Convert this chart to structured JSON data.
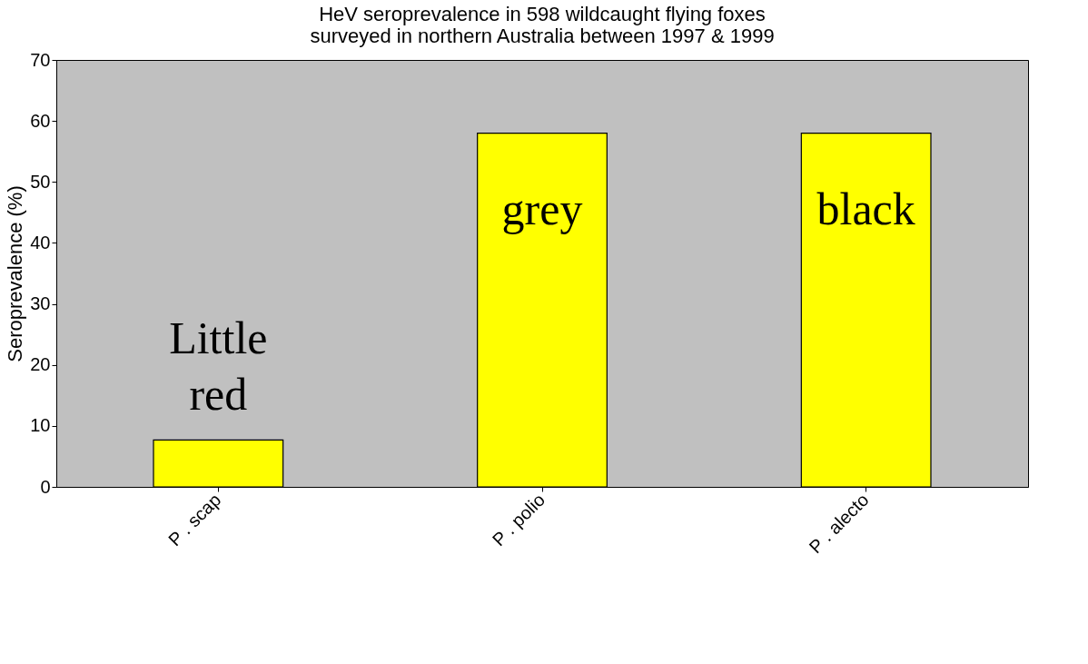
{
  "chart_data": {
    "type": "bar",
    "title": "HeV seroprevalence in 598 wildcaught flying foxes\nsurveyed in northern Australia between 1997 & 1999",
    "ylabel": "Seroprevalence (%)",
    "categories": [
      "P . scap",
      "P . polio",
      "P . alecto"
    ],
    "values": [
      7.7,
      58,
      58
    ],
    "color": "#ffff00",
    "ylim": [
      0,
      70
    ],
    "yticks": [
      0,
      10,
      20,
      30,
      40,
      50,
      60,
      70
    ],
    "grid": false,
    "annotations": [
      "Little red",
      "grey",
      "black"
    ]
  }
}
